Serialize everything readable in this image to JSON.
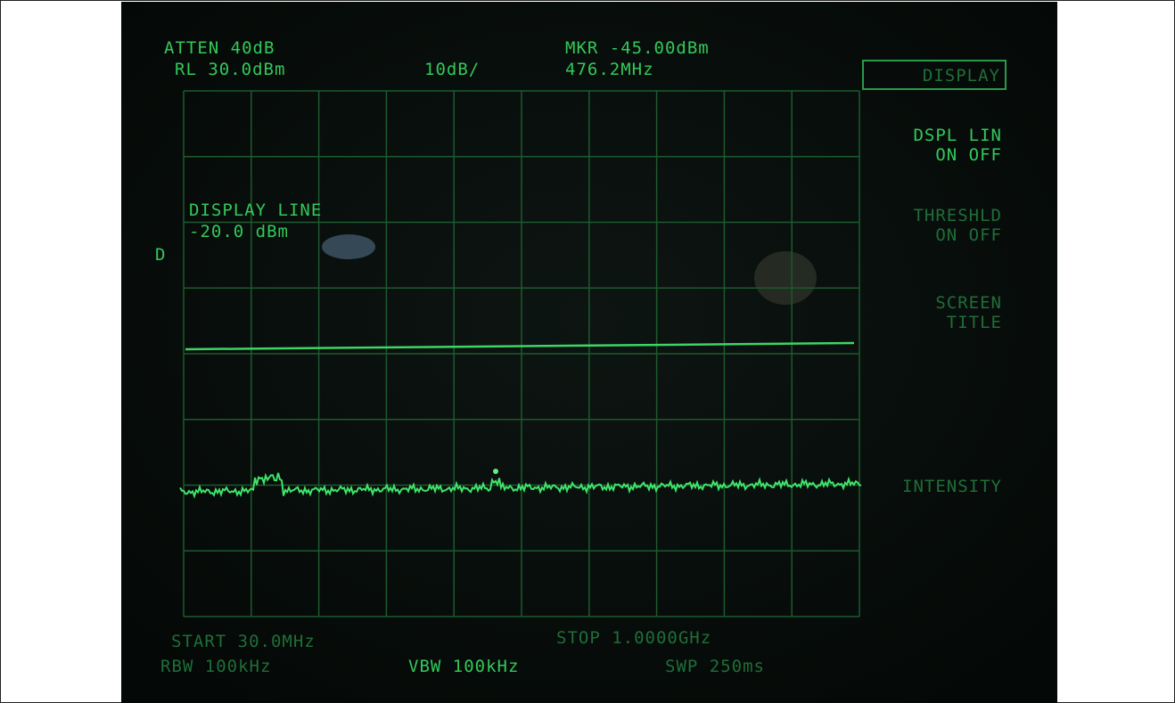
{
  "header": {
    "atten": "ATTEN 40dB",
    "ref_level": "RL 30.0dBm",
    "scale": "10dB/",
    "marker": "MKR -45.00dBm",
    "marker_freq": "476.2MHz"
  },
  "display_line": {
    "title": "DISPLAY LINE",
    "level": "-20.0 dBm",
    "flag": "D"
  },
  "softkeys": {
    "title": "DISPLAY",
    "dspl_lin": [
      "DSPL LIN",
      "ON OFF"
    ],
    "threshold": [
      "THRESHLD",
      "ON OFF"
    ],
    "screen_title": [
      "SCREEN",
      "TITLE"
    ],
    "intensity": "INTENSITY"
  },
  "footer": {
    "start": "START 30.0MHz",
    "stop": "STOP 1.0000GHz",
    "rbw": "RBW 100kHz",
    "vbw": "VBW 100kHz",
    "sweep": "SWP 250ms"
  }
}
